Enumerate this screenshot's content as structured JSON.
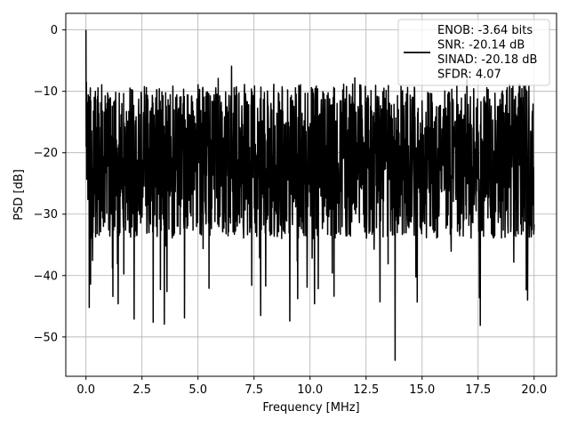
{
  "chart_data": {
    "type": "line",
    "title": "",
    "xlabel": "Frequency [MHz]",
    "ylabel": "PSD [dB]",
    "xlim": [
      -0.9,
      21.0
    ],
    "ylim": [
      -56.4,
      2.7
    ],
    "x_ticks": [
      0.0,
      2.5,
      5.0,
      7.5,
      10.0,
      12.5,
      15.0,
      17.5,
      20.0
    ],
    "x_tick_labels": [
      "0.0",
      "2.5",
      "5.0",
      "7.5",
      "10.0",
      "12.5",
      "15.0",
      "17.5",
      "20.0"
    ],
    "y_ticks": [
      0,
      -10,
      -20,
      -30,
      -40,
      -50
    ],
    "y_tick_labels": [
      "0",
      "−10",
      "−20",
      "−30",
      "−40",
      "−50"
    ],
    "grid": true,
    "legend": {
      "placement": "upper-right",
      "entries": [
        "ENOB: -3.64 bits",
        "SNR: -20.14 dB",
        "SINAD: -20.18 dB",
        "SFDR: 4.07"
      ]
    },
    "series": [
      {
        "color": "#000000",
        "x_range": [
          0.0,
          20.0
        ],
        "points": 2048,
        "noise_floor_db": -20,
        "peak_at_dc_db": 0,
        "max_noise_db": -5.9,
        "min_db": -53.8,
        "notable_dips": [
          {
            "x": 0.15,
            "y": -45.2
          },
          {
            "x": 2.15,
            "y": -47.1
          },
          {
            "x": 3.0,
            "y": -47.6
          },
          {
            "x": 3.5,
            "y": -47.9
          },
          {
            "x": 4.4,
            "y": -46.9
          },
          {
            "x": 7.8,
            "y": -46.5
          },
          {
            "x": 9.1,
            "y": -47.4
          },
          {
            "x": 10.2,
            "y": -44.6
          },
          {
            "x": 13.8,
            "y": -53.8
          },
          {
            "x": 17.6,
            "y": -48.1
          }
        ],
        "notable_peaks": [
          {
            "x": 0.0,
            "y": 0.0
          },
          {
            "x": 0.05,
            "y": -8.5
          },
          {
            "x": 6.5,
            "y": -5.9
          },
          {
            "x": 5.9,
            "y": -7.9
          },
          {
            "x": 12.0,
            "y": -7.8
          },
          {
            "x": 17.0,
            "y": -8.1
          }
        ]
      }
    ]
  },
  "colors": {
    "line": "#000000",
    "grid": "#b0b0b0",
    "frame": "#000000",
    "legend_border": "#cccccc"
  }
}
